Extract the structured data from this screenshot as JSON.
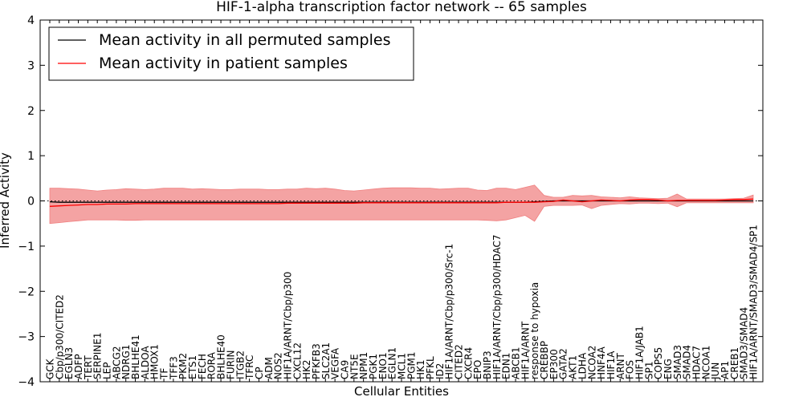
{
  "chart_data": {
    "type": "line",
    "title": "HIF-1-alpha transcription factor network -- 65 samples",
    "xlabel": "Cellular Entities",
    "ylabel": "Inferred Activity",
    "ylim": [
      -4,
      4
    ],
    "yticks": [
      "4",
      "3",
      "2",
      "1",
      "0",
      "−1",
      "−2",
      "−3",
      "−4"
    ],
    "ytick_values": [
      4,
      3,
      2,
      1,
      0,
      -1,
      -2,
      -3,
      -4
    ],
    "legend_position": "top-left",
    "colors": {
      "permuted": "#000000",
      "patient": "#ff0000",
      "band": "#f08080",
      "band_grey": "#bbbbbb"
    },
    "categories": [
      "GCK",
      "Cbp/p300/CITED2",
      "EGLN3",
      "ADFP",
      "TERT",
      "SERPINE1",
      "LEP",
      "ABCG2",
      "NDRG1",
      "BHLHE41",
      "ALDOA",
      "HMOX1",
      "TF",
      "TFF3",
      "PKM2",
      "ETS1",
      "FECH",
      "RORA",
      "BHLHE40",
      "FURIN",
      "ITGB2",
      "TFRC",
      "CP",
      "ADM",
      "NOS2",
      "HIF1A/ARNT/Cbp/p300",
      "CXCL12",
      "HK2",
      "PFKFB3",
      "SLC2A1",
      "VEGFA",
      "CA9",
      "NT5E",
      "NPM1",
      "PGK1",
      "ENO1",
      "EGLN1",
      "MCL1",
      "PGM1",
      "HK1",
      "PFKL",
      "ID2",
      "HIF1A/ARNT/Cbp/p300/Src-1",
      "CITED2",
      "CXCR4",
      "EPO",
      "BNIP3",
      "HIF1A/ARNT/Cbp/p300/HDAC7",
      "EDN1",
      "ABCB1",
      "HIF1A/ARNT",
      "response to hypoxia",
      "CREBBP",
      "EP300",
      "GATA2",
      "AKT1",
      "LDHA",
      "NCOA2",
      "HNF4A",
      "HIF1A",
      "ARNT",
      "FOS",
      "HIF1A/JAB1",
      "SP1",
      "COPS5",
      "ENG",
      "SMAD3",
      "SMAD4",
      "HDAC7",
      "NCOA1",
      "JUN",
      "AP1",
      "CREB1",
      "SMAD3/SMAD4",
      "HIF1A/ARNT/SMAD3/SMAD4/SP1"
    ],
    "series": [
      {
        "name": "Mean activity in all permuted samples",
        "color": "#000000",
        "values": [
          -0.02,
          -0.03,
          -0.03,
          -0.03,
          -0.03,
          -0.03,
          -0.03,
          -0.03,
          -0.03,
          -0.03,
          -0.03,
          -0.03,
          -0.03,
          -0.03,
          -0.03,
          -0.03,
          -0.03,
          -0.03,
          -0.03,
          -0.03,
          -0.03,
          -0.03,
          -0.03,
          -0.03,
          -0.03,
          -0.03,
          -0.03,
          -0.03,
          -0.03,
          -0.03,
          -0.03,
          -0.03,
          -0.03,
          -0.03,
          -0.03,
          -0.03,
          -0.03,
          -0.03,
          -0.03,
          -0.03,
          -0.03,
          -0.03,
          -0.03,
          -0.03,
          -0.03,
          -0.03,
          -0.03,
          -0.03,
          -0.03,
          -0.03,
          -0.03,
          -0.02,
          -0.01,
          0.0,
          0.0,
          0.0,
          0.0,
          0.0,
          0.0,
          0.0,
          0.0,
          0.0,
          0.0,
          0.0,
          0.0,
          0.0,
          0.0,
          0.0,
          0.0,
          0.0,
          0.0,
          0.0,
          0.0,
          0.0,
          0.0
        ]
      },
      {
        "name": "Mean activity in patient samples",
        "color": "#ff0000",
        "values": [
          -0.12,
          -0.11,
          -0.1,
          -0.09,
          -0.08,
          -0.08,
          -0.07,
          -0.07,
          -0.07,
          -0.06,
          -0.06,
          -0.06,
          -0.06,
          -0.06,
          -0.06,
          -0.06,
          -0.06,
          -0.06,
          -0.06,
          -0.06,
          -0.06,
          -0.06,
          -0.06,
          -0.06,
          -0.06,
          -0.05,
          -0.05,
          -0.05,
          -0.05,
          -0.05,
          -0.05,
          -0.05,
          -0.05,
          -0.04,
          -0.04,
          -0.04,
          -0.04,
          -0.04,
          -0.04,
          -0.04,
          -0.04,
          -0.04,
          -0.04,
          -0.04,
          -0.04,
          -0.04,
          -0.04,
          -0.04,
          -0.03,
          -0.03,
          -0.03,
          -0.03,
          -0.02,
          -0.01,
          0.02,
          0.0,
          -0.02,
          0.0,
          0.02,
          0.01,
          0.0,
          0.02,
          0.03,
          0.03,
          0.02,
          0.0,
          0.01,
          0.01,
          0.01,
          0.01,
          0.01,
          0.02,
          0.03,
          0.03,
          0.04
        ]
      }
    ],
    "band_upper": [
      0.28,
      0.28,
      0.27,
      0.26,
      0.24,
      0.22,
      0.24,
      0.25,
      0.27,
      0.26,
      0.25,
      0.26,
      0.28,
      0.28,
      0.28,
      0.26,
      0.27,
      0.26,
      0.25,
      0.25,
      0.26,
      0.26,
      0.26,
      0.25,
      0.25,
      0.26,
      0.26,
      0.28,
      0.27,
      0.28,
      0.26,
      0.23,
      0.22,
      0.24,
      0.26,
      0.28,
      0.29,
      0.29,
      0.29,
      0.28,
      0.28,
      0.26,
      0.27,
      0.28,
      0.28,
      0.24,
      0.23,
      0.28,
      0.28,
      0.25,
      0.3,
      0.35,
      0.12,
      0.08,
      0.08,
      0.12,
      0.11,
      0.12,
      0.09,
      0.08,
      0.07,
      0.09,
      0.07,
      0.06,
      0.05,
      0.06,
      0.15,
      0.04,
      0.04,
      0.04,
      0.04,
      0.04,
      0.05,
      0.06,
      0.13
    ],
    "band_lower": [
      -0.5,
      -0.48,
      -0.46,
      -0.44,
      -0.42,
      -0.42,
      -0.42,
      -0.42,
      -0.43,
      -0.43,
      -0.42,
      -0.42,
      -0.42,
      -0.42,
      -0.42,
      -0.42,
      -0.42,
      -0.42,
      -0.42,
      -0.42,
      -0.42,
      -0.42,
      -0.42,
      -0.42,
      -0.42,
      -0.42,
      -0.42,
      -0.42,
      -0.42,
      -0.42,
      -0.42,
      -0.42,
      -0.42,
      -0.42,
      -0.42,
      -0.42,
      -0.42,
      -0.42,
      -0.42,
      -0.42,
      -0.42,
      -0.42,
      -0.42,
      -0.42,
      -0.42,
      -0.42,
      -0.43,
      -0.44,
      -0.42,
      -0.37,
      -0.32,
      -0.45,
      -0.12,
      -0.1,
      -0.1,
      -0.1,
      -0.09,
      -0.17,
      -0.1,
      -0.08,
      -0.06,
      -0.07,
      -0.05,
      -0.05,
      -0.06,
      -0.05,
      -0.13,
      -0.04,
      -0.04,
      -0.04,
      -0.04,
      -0.04,
      -0.04,
      -0.04,
      -0.04
    ],
    "reference_line": 0
  }
}
